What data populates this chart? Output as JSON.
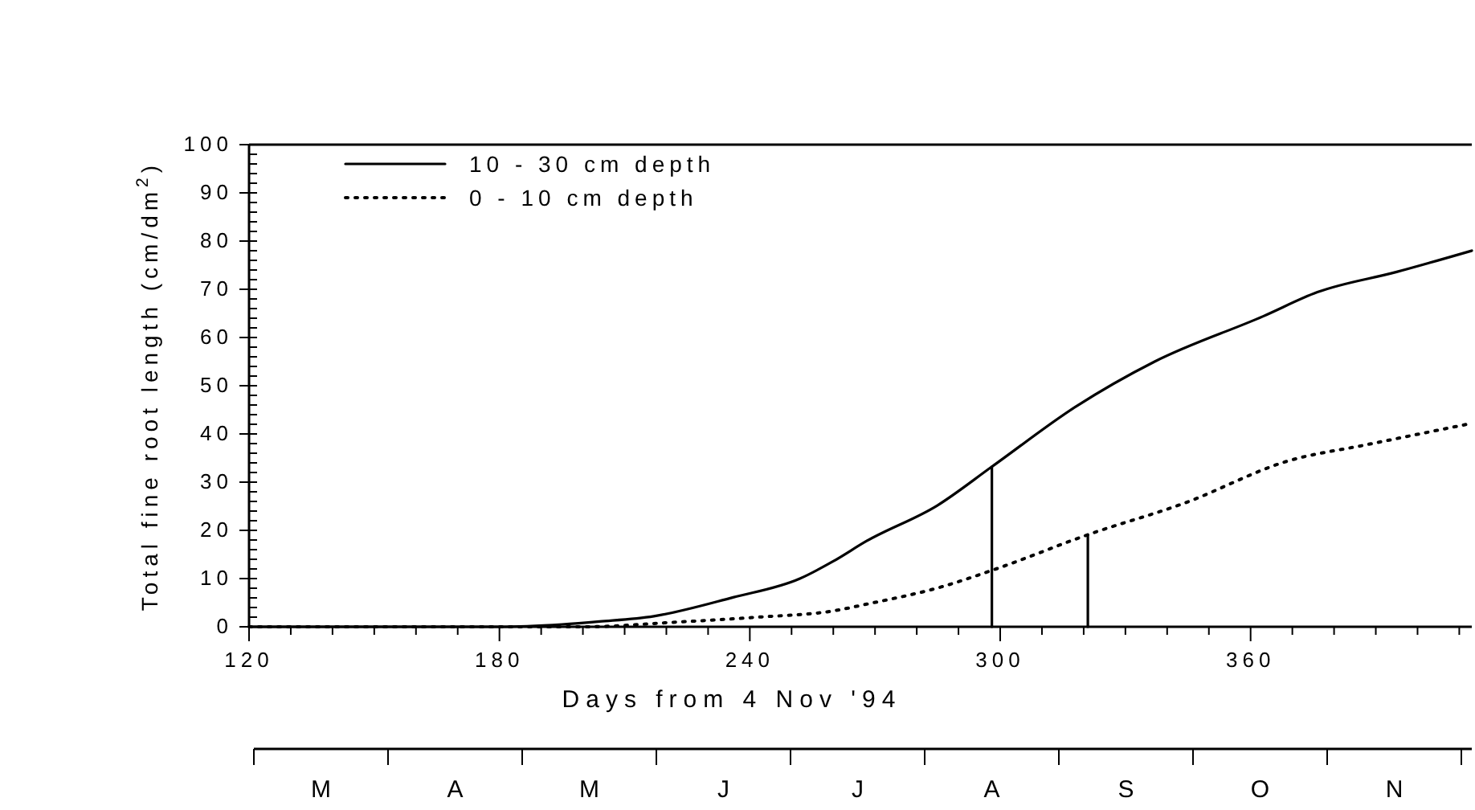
{
  "chart_data": {
    "type": "line",
    "xlabel": "Days from 4 Nov '94",
    "ylabel": "Total fine root length (cm/dm$^{2}$)",
    "xlim": [
      120,
      413
    ],
    "ylim": [
      0,
      100
    ],
    "xticks": [
      120,
      {
        "value": 130,
        "label": null
      },
      {
        "value": 140,
        "label": null
      },
      {
        "value": 150,
        "label": null
      },
      {
        "value": 160,
        "label": null
      },
      {
        "value": 170,
        "label": null
      },
      180,
      {
        "value": 190,
        "label": null
      },
      {
        "value": 200,
        "label": null
      },
      {
        "value": 210,
        "label": null
      },
      {
        "value": 220,
        "label": null
      },
      {
        "value": 230,
        "label": null
      },
      240,
      {
        "value": 250,
        "label": null
      },
      {
        "value": 260,
        "label": null
      },
      {
        "value": 270,
        "label": null
      },
      {
        "value": 280,
        "label": null
      },
      {
        "value": 290,
        "label": null
      },
      300,
      {
        "value": 310,
        "label": null
      },
      {
        "value": 320,
        "label": null
      },
      {
        "value": 330,
        "label": null
      },
      {
        "value": 340,
        "label": null
      },
      {
        "value": 350,
        "label": null
      },
      360,
      {
        "value": 370,
        "label": null
      },
      {
        "value": 380,
        "label": null
      },
      {
        "value": 390,
        "label": null
      },
      {
        "value": 400,
        "label": null
      },
      {
        "value": 410,
        "label": null
      }
    ],
    "yticks": [
      0,
      {
        "value": 2,
        "label": null
      },
      {
        "value": 4,
        "label": null
      },
      {
        "value": 6,
        "label": null
      },
      {
        "value": 8,
        "label": null
      },
      10,
      {
        "value": 12,
        "label": null
      },
      {
        "value": 14,
        "label": null
      },
      {
        "value": 16,
        "label": null
      },
      {
        "value": 18,
        "label": null
      },
      20,
      {
        "value": 22,
        "label": null
      },
      {
        "value": 24,
        "label": null
      },
      {
        "value": 26,
        "label": null
      },
      {
        "value": 28,
        "label": null
      },
      30,
      {
        "value": 32,
        "label": null
      },
      {
        "value": 34,
        "label": null
      },
      {
        "value": 36,
        "label": null
      },
      {
        "value": 38,
        "label": null
      },
      40,
      {
        "value": 42,
        "label": null
      },
      {
        "value": 44,
        "label": null
      },
      {
        "value": 46,
        "label": null
      },
      {
        "value": 48,
        "label": null
      },
      50,
      {
        "value": 52,
        "label": null
      },
      {
        "value": 54,
        "label": null
      },
      {
        "value": 56,
        "label": null
      },
      {
        "value": 58,
        "label": null
      },
      60,
      {
        "value": 62,
        "label": null
      },
      {
        "value": 64,
        "label": null
      },
      {
        "value": 66,
        "label": null
      },
      {
        "value": 68,
        "label": null
      },
      70,
      {
        "value": 72,
        "label": null
      },
      {
        "value": 74,
        "label": null
      },
      {
        "value": 76,
        "label": null
      },
      {
        "value": 78,
        "label": null
      },
      80,
      {
        "value": 82,
        "label": null
      },
      {
        "value": 84,
        "label": null
      },
      {
        "value": 86,
        "label": null
      },
      {
        "value": 88,
        "label": null
      },
      90,
      {
        "value": 92,
        "label": null
      },
      {
        "value": 94,
        "label": null
      },
      {
        "value": 96,
        "label": null
      },
      {
        "value": 98,
        "label": null
      },
      100
    ],
    "annotations": [
      "M",
      "A",
      "M",
      "J",
      "J",
      "A",
      "S",
      "O",
      "N"
    ],
    "legend": "top left",
    "series": [
      {
        "name": "10 - 30 cm depth",
        "color": "#000000",
        "line_style": "solid",
        "x": [
          120,
          180,
          195,
          204,
          217,
          236,
          252,
          260,
          268,
          285,
          298,
          318,
          337,
          363,
          376,
          395,
          413
        ],
        "values": [
          0,
          0,
          0.5,
          1.1,
          2.2,
          6.1,
          10,
          13.6,
          17.8,
          25.2,
          33.2,
          45.6,
          55,
          64.4,
          69.4,
          73.6,
          78
        ]
      },
      {
        "name": "0 - 10 cm depth",
        "color": "#000000",
        "line_style": "dotted",
        "x": [
          120,
          200,
          223,
          242,
          260,
          268,
          286,
          299,
          321,
          344,
          369,
          388,
          413
        ],
        "values": [
          0,
          0,
          1,
          2,
          3.3,
          4.7,
          8.3,
          12,
          19.1,
          25.6,
          34.4,
          37.8,
          42.2
        ]
      },
      {
        "type": "line",
        "color": "#000000",
        "line_style": "solid",
        "x": [
          298,
          298
        ],
        "values": [
          0,
          33.2
        ]
      },
      {
        "type": "line",
        "color": "#000000",
        "line_style": "solid",
        "x": [
          321,
          321
        ],
        "values": [
          0,
          19.1
        ]
      }
    ]
  }
}
